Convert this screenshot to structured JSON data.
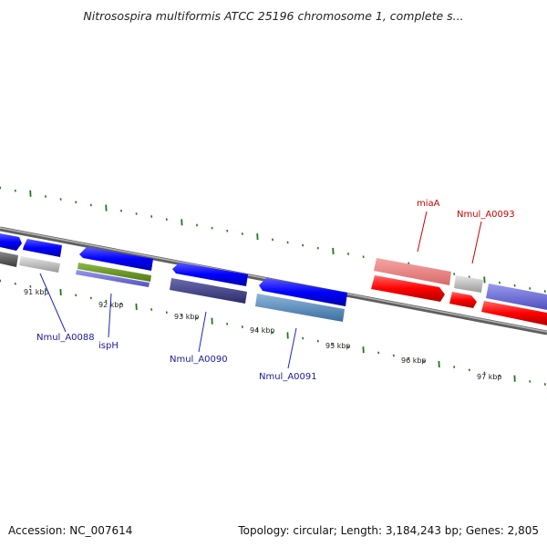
{
  "title": "Nitrosospira multiformis ATCC 25196 chromosome 1, complete s...",
  "footer": {
    "accession": "Accession: NC_007614",
    "stats": "Topology: circular; Length: 3,184,243 bp; Genes: 2,805"
  },
  "colors": {
    "forward_gene": "#0000ff",
    "selected_gene": "#ff0000",
    "gene_label": "#00008b",
    "selected_label": "#cc0000",
    "tick": "#1a7a1a",
    "backbone": "#808080"
  },
  "ruler": {
    "ticks_upper": [],
    "ticks_lower": [
      {
        "label": "91 kbp",
        "kbp": 91
      },
      {
        "label": "92 kbp",
        "kbp": 92
      },
      {
        "label": "93 kbp",
        "kbp": 93
      },
      {
        "label": "94 kbp",
        "kbp": 94
      },
      {
        "label": "95 kbp",
        "kbp": 95
      },
      {
        "label": "96 kbp",
        "kbp": 96
      },
      {
        "label": "97 kbp",
        "kbp": 97
      }
    ]
  },
  "gene_labels": [
    {
      "name": "Nmul_A0088",
      "selected": false
    },
    {
      "name": "ispH",
      "selected": false
    },
    {
      "name": "Nmul_A0090",
      "selected": false
    },
    {
      "name": "Nmul_A0091",
      "selected": false
    },
    {
      "name": "miaA",
      "selected": true
    },
    {
      "name": "Nmul_A0093",
      "selected": true
    }
  ]
}
